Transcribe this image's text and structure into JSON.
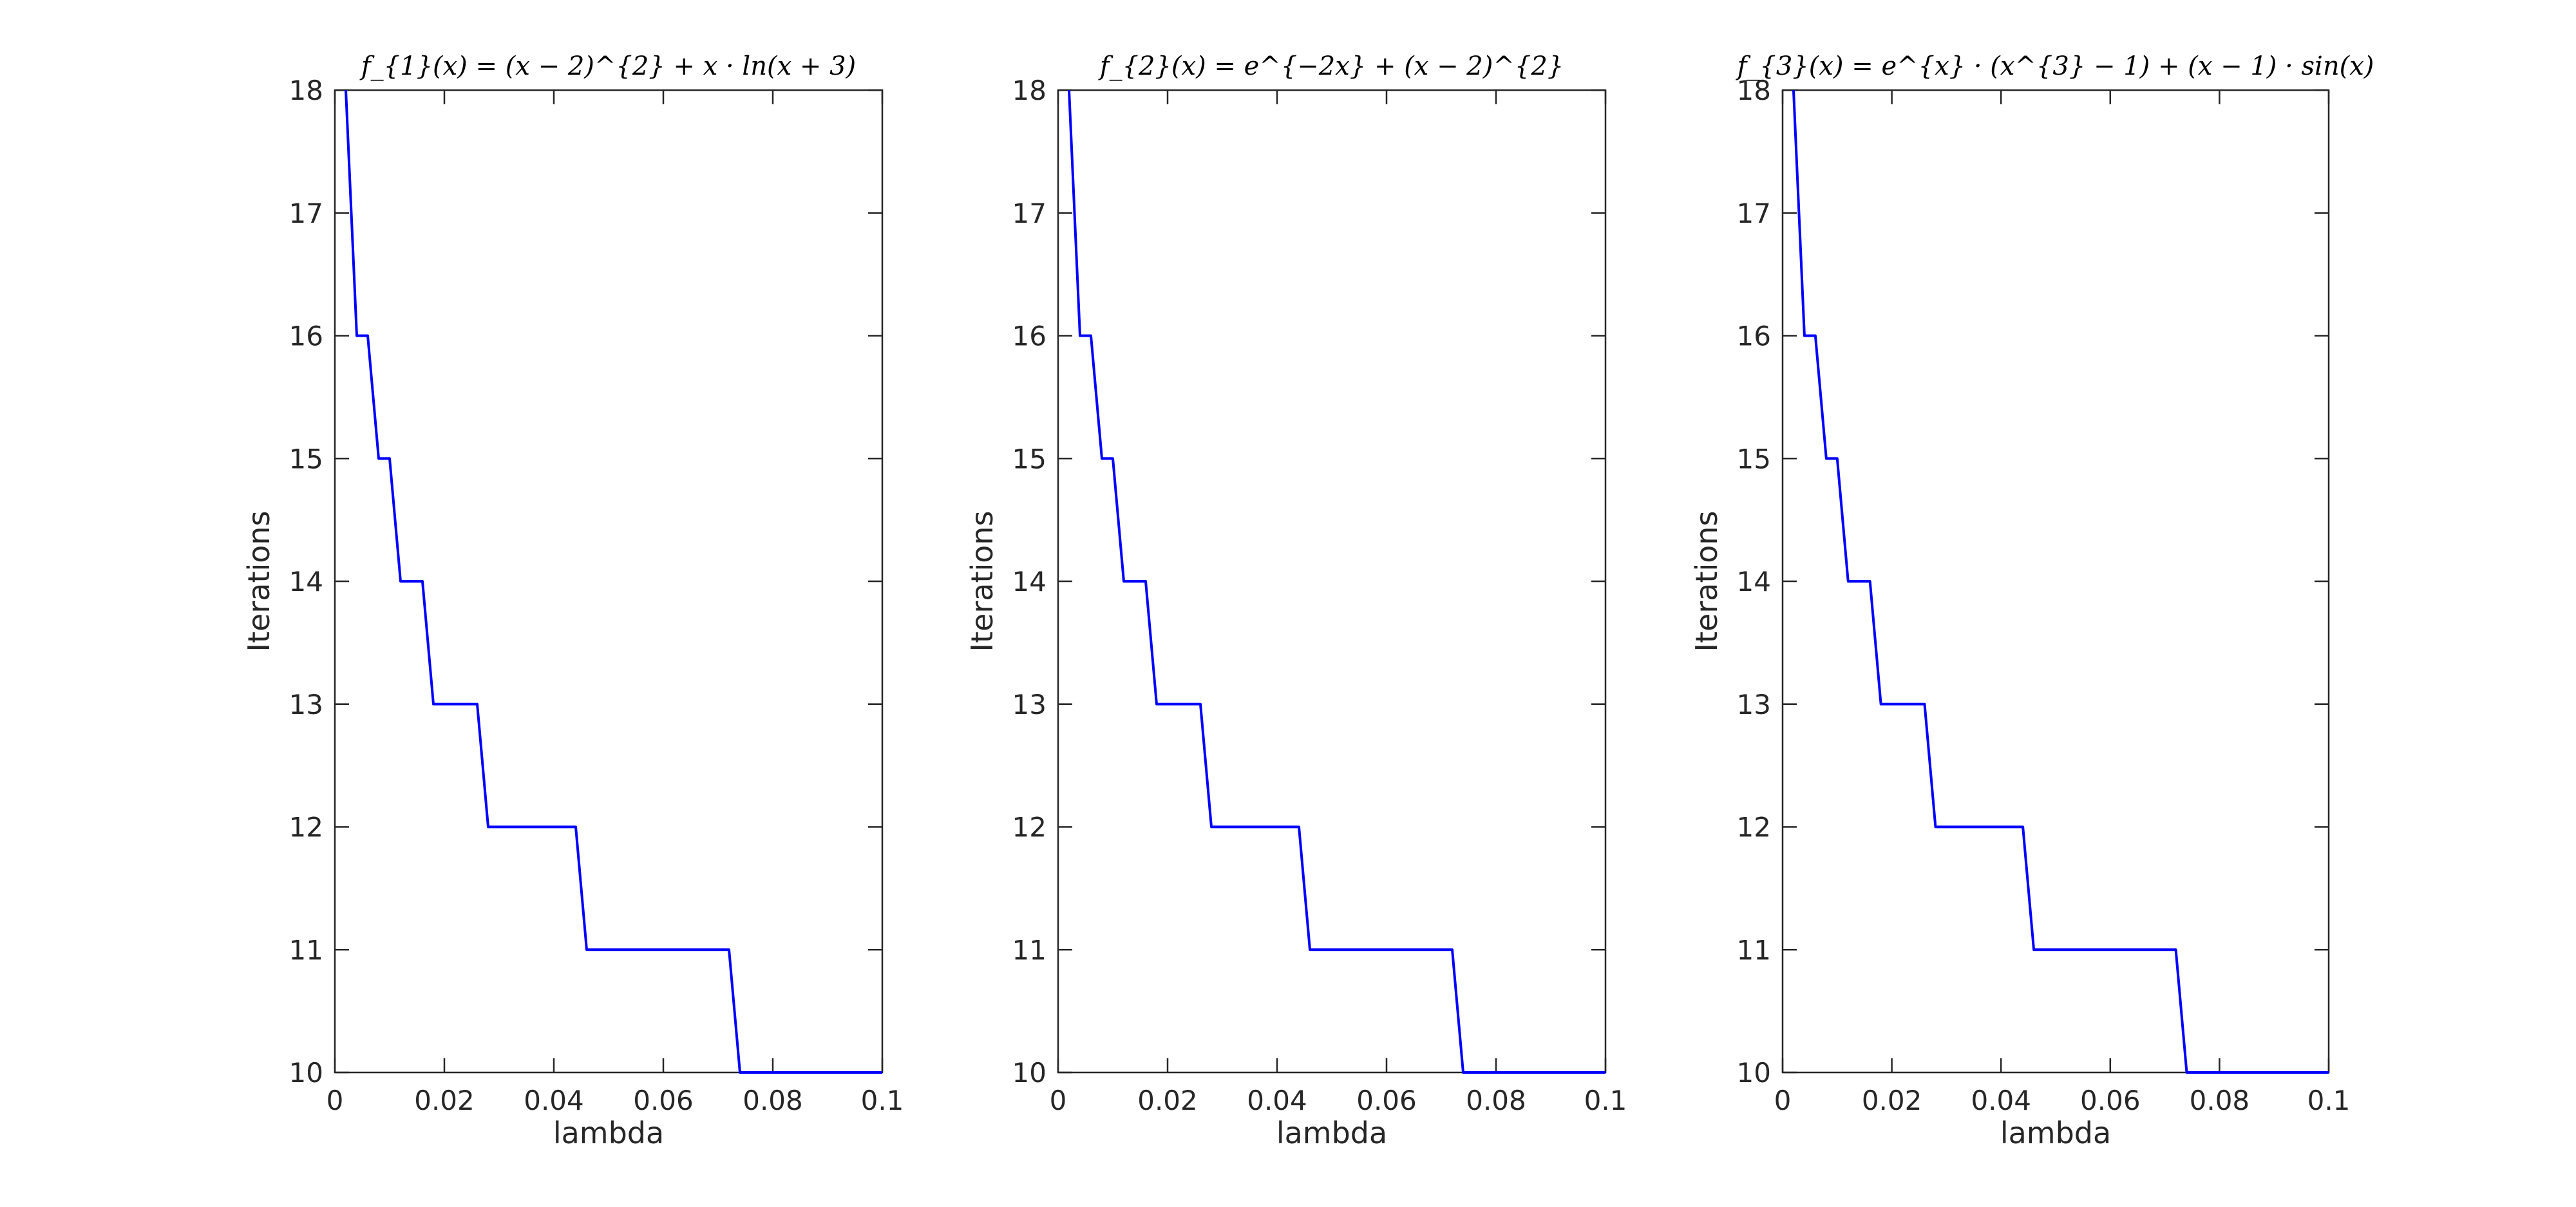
{
  "figure": {
    "line_color": "#0000ff",
    "axis_color": "#262626"
  },
  "chart_data": [
    {
      "type": "line",
      "title": "f_{1}(x) = (x − 2)^{2} + x · ln(x + 3)",
      "xlabel": "lambda",
      "ylabel": "Iterations",
      "xlim": [
        0,
        0.1
      ],
      "ylim": [
        10,
        18
      ],
      "xticks": [
        "0",
        "0.02",
        "0.04",
        "0.06",
        "0.08",
        "0.1"
      ],
      "xtick_values": [
        0,
        0.02,
        0.04,
        0.06,
        0.08,
        0.1
      ],
      "yticks": [
        "10",
        "11",
        "12",
        "13",
        "14",
        "15",
        "16",
        "17",
        "18"
      ],
      "ytick_values": [
        10,
        11,
        12,
        13,
        14,
        15,
        16,
        17,
        18
      ],
      "grid": false,
      "series": [
        {
          "name": "f1",
          "x": [
            0.002,
            0.004,
            0.006,
            0.008,
            0.01,
            0.012,
            0.016,
            0.018,
            0.026,
            0.028,
            0.044,
            0.046,
            0.072,
            0.074,
            0.1
          ],
          "y": [
            18,
            16,
            16,
            15,
            15,
            14,
            14,
            13,
            13,
            12,
            12,
            11,
            11,
            10,
            10
          ]
        }
      ]
    },
    {
      "type": "line",
      "title": "f_{2}(x) = e^{−2x} + (x − 2)^{2}",
      "xlabel": "lambda",
      "ylabel": "Iterations",
      "xlim": [
        0,
        0.1
      ],
      "ylim": [
        10,
        18
      ],
      "xticks": [
        "0",
        "0.02",
        "0.04",
        "0.06",
        "0.08",
        "0.1"
      ],
      "xtick_values": [
        0,
        0.02,
        0.04,
        0.06,
        0.08,
        0.1
      ],
      "yticks": [
        "10",
        "11",
        "12",
        "13",
        "14",
        "15",
        "16",
        "17",
        "18"
      ],
      "ytick_values": [
        10,
        11,
        12,
        13,
        14,
        15,
        16,
        17,
        18
      ],
      "grid": false,
      "series": [
        {
          "name": "f2",
          "x": [
            0.002,
            0.004,
            0.006,
            0.008,
            0.01,
            0.012,
            0.016,
            0.018,
            0.026,
            0.028,
            0.044,
            0.046,
            0.072,
            0.074,
            0.1
          ],
          "y": [
            18,
            16,
            16,
            15,
            15,
            14,
            14,
            13,
            13,
            12,
            12,
            11,
            11,
            10,
            10
          ]
        }
      ]
    },
    {
      "type": "line",
      "title": "f_{3}(x) = e^{x} · (x^{3} − 1) + (x − 1) · sin(x)",
      "xlabel": "lambda",
      "ylabel": "Iterations",
      "xlim": [
        0,
        0.1
      ],
      "ylim": [
        10,
        18
      ],
      "xticks": [
        "0",
        "0.02",
        "0.04",
        "0.06",
        "0.08",
        "0.1"
      ],
      "xtick_values": [
        0,
        0.02,
        0.04,
        0.06,
        0.08,
        0.1
      ],
      "yticks": [
        "10",
        "11",
        "12",
        "13",
        "14",
        "15",
        "16",
        "17",
        "18"
      ],
      "ytick_values": [
        10,
        11,
        12,
        13,
        14,
        15,
        16,
        17,
        18
      ],
      "grid": false,
      "series": [
        {
          "name": "f3",
          "x": [
            0.002,
            0.004,
            0.006,
            0.008,
            0.01,
            0.012,
            0.016,
            0.018,
            0.026,
            0.028,
            0.044,
            0.046,
            0.072,
            0.074,
            0.1
          ],
          "y": [
            18,
            16,
            16,
            15,
            15,
            14,
            14,
            13,
            13,
            12,
            12,
            11,
            11,
            10,
            10
          ]
        }
      ]
    }
  ]
}
